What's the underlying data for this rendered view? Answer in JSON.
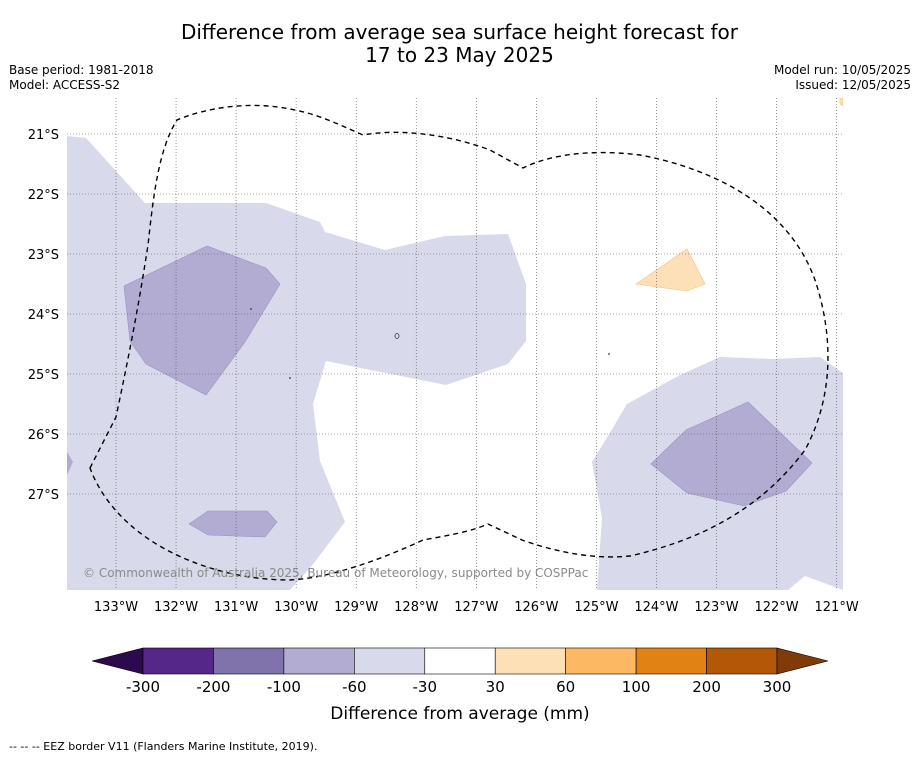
{
  "header": {
    "title_line1": "Difference from average sea surface height forecast for",
    "title_line2": "17 to 23 May 2025",
    "base_period": "Base period: 1981-2018",
    "model": "Model: ACCESS-S2",
    "model_run": "Model run: 10/05/2025",
    "issued": "Issued: 12/05/2025"
  },
  "map": {
    "copyright": "© Commonwealth of Australia 2025, Bureau of Meteorology, supported by COSPPac",
    "lon_labels": [
      "133°W",
      "132°W",
      "131°W",
      "130°W",
      "129°W",
      "128°W",
      "127°W",
      "126°W",
      "125°W",
      "124°W",
      "123°W",
      "122°W",
      "121°W"
    ],
    "lat_labels": [
      "21°S",
      "22°S",
      "23°S",
      "24°S",
      "25°S",
      "26°S",
      "27°S"
    ]
  },
  "legend": {
    "label": "Difference from average (mm)",
    "ticks": [
      "-300",
      "-200",
      "-100",
      "-60",
      "-30",
      "30",
      "60",
      "100",
      "200",
      "300"
    ],
    "colors": {
      "below_min": "#2d0a4e",
      "bins": [
        "#542788",
        "#8073ac",
        "#b2abd2",
        "#d8daeb",
        "#ffffff",
        "#fee0b6",
        "#fdb863",
        "#e08214",
        "#b35806"
      ],
      "above_max": "#7f3b08"
    }
  },
  "footer": {
    "note": "--  --  -- EEZ border V11 (Flanders Marine Institute, 2019)."
  }
}
